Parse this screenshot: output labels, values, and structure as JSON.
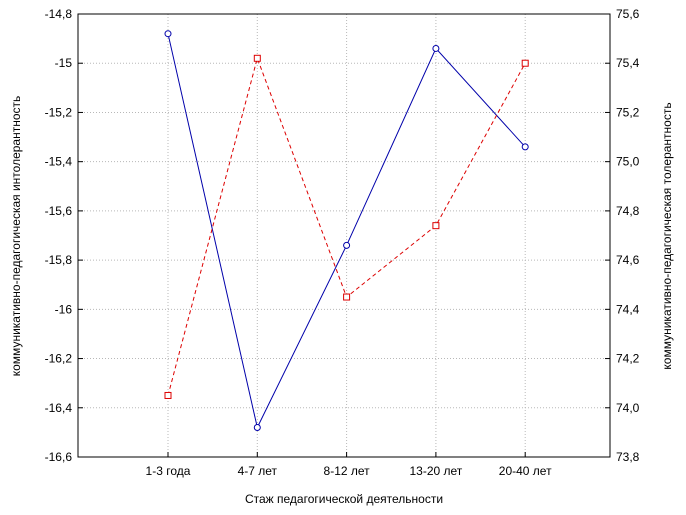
{
  "chart_data": {
    "type": "line",
    "xlabel": "Стаж педагогической деятельности",
    "categories": [
      "1-3 года",
      "4-7 лет",
      "8-12 лет",
      "13-20 лет",
      "20-40 лет"
    ],
    "y_left": {
      "label": "коммуникативно-педагогическая интолерантность",
      "ylim": [
        -16.6,
        -14.8
      ],
      "ticks": [
        -14.8,
        -15,
        -15.2,
        -15.4,
        -15.6,
        -15.8,
        -16,
        -16.2,
        -16.4,
        -16.6
      ],
      "tick_labels": [
        "-14,8",
        "-15",
        "-15,2",
        "-15,4",
        "-15,6",
        "-15,8",
        "-16",
        "-16,2",
        "-16,4",
        "-16,6"
      ]
    },
    "y_right": {
      "label": "коммуникативно-педагогическая толерантность",
      "ylim": [
        73.8,
        75.6
      ],
      "ticks": [
        75.6,
        75.4,
        75.2,
        75.0,
        74.8,
        74.6,
        74.4,
        74.2,
        74.0,
        73.8
      ],
      "tick_labels": [
        "75,6",
        "75,4",
        "75,2",
        "75,0",
        "74,8",
        "74,6",
        "74,4",
        "74,2",
        "74,0",
        "73,8"
      ]
    },
    "series": [
      {
        "axis": "left",
        "color": "#0000aa",
        "line_style": "solid",
        "marker": "circle",
        "values": [
          -14.88,
          -16.48,
          -15.74,
          -14.94,
          -15.34
        ]
      },
      {
        "axis": "right",
        "color": "#dd0000",
        "line_style": "dashed",
        "marker": "square",
        "values": [
          74.05,
          75.42,
          74.45,
          74.74,
          75.4
        ]
      }
    ],
    "grid": true
  }
}
